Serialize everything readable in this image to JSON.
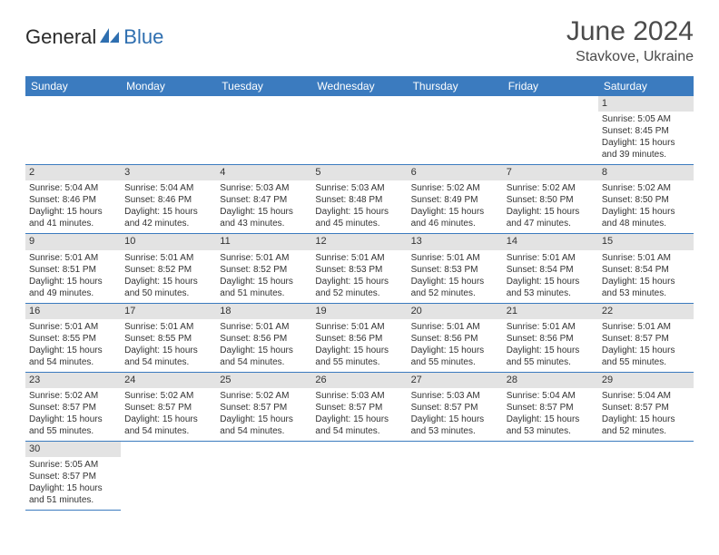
{
  "brand": {
    "part1": "General",
    "part2": "Blue"
  },
  "title": "June 2024",
  "location": "Stavkove, Ukraine",
  "colors": {
    "header_bg": "#3b7bbf",
    "header_fg": "#ffffff",
    "daynum_bg": "#e3e3e3",
    "border": "#3b7bbf",
    "text": "#333333",
    "title_color": "#4b4b4b",
    "logo_blue": "#2f6fb0"
  },
  "weekdays": [
    "Sunday",
    "Monday",
    "Tuesday",
    "Wednesday",
    "Thursday",
    "Friday",
    "Saturday"
  ],
  "days": {
    "1": {
      "sunrise": "5:05 AM",
      "sunset": "8:45 PM",
      "daylight": "15 hours and 39 minutes."
    },
    "2": {
      "sunrise": "5:04 AM",
      "sunset": "8:46 PM",
      "daylight": "15 hours and 41 minutes."
    },
    "3": {
      "sunrise": "5:04 AM",
      "sunset": "8:46 PM",
      "daylight": "15 hours and 42 minutes."
    },
    "4": {
      "sunrise": "5:03 AM",
      "sunset": "8:47 PM",
      "daylight": "15 hours and 43 minutes."
    },
    "5": {
      "sunrise": "5:03 AM",
      "sunset": "8:48 PM",
      "daylight": "15 hours and 45 minutes."
    },
    "6": {
      "sunrise": "5:02 AM",
      "sunset": "8:49 PM",
      "daylight": "15 hours and 46 minutes."
    },
    "7": {
      "sunrise": "5:02 AM",
      "sunset": "8:50 PM",
      "daylight": "15 hours and 47 minutes."
    },
    "8": {
      "sunrise": "5:02 AM",
      "sunset": "8:50 PM",
      "daylight": "15 hours and 48 minutes."
    },
    "9": {
      "sunrise": "5:01 AM",
      "sunset": "8:51 PM",
      "daylight": "15 hours and 49 minutes."
    },
    "10": {
      "sunrise": "5:01 AM",
      "sunset": "8:52 PM",
      "daylight": "15 hours and 50 minutes."
    },
    "11": {
      "sunrise": "5:01 AM",
      "sunset": "8:52 PM",
      "daylight": "15 hours and 51 minutes."
    },
    "12": {
      "sunrise": "5:01 AM",
      "sunset": "8:53 PM",
      "daylight": "15 hours and 52 minutes."
    },
    "13": {
      "sunrise": "5:01 AM",
      "sunset": "8:53 PM",
      "daylight": "15 hours and 52 minutes."
    },
    "14": {
      "sunrise": "5:01 AM",
      "sunset": "8:54 PM",
      "daylight": "15 hours and 53 minutes."
    },
    "15": {
      "sunrise": "5:01 AM",
      "sunset": "8:54 PM",
      "daylight": "15 hours and 53 minutes."
    },
    "16": {
      "sunrise": "5:01 AM",
      "sunset": "8:55 PM",
      "daylight": "15 hours and 54 minutes."
    },
    "17": {
      "sunrise": "5:01 AM",
      "sunset": "8:55 PM",
      "daylight": "15 hours and 54 minutes."
    },
    "18": {
      "sunrise": "5:01 AM",
      "sunset": "8:56 PM",
      "daylight": "15 hours and 54 minutes."
    },
    "19": {
      "sunrise": "5:01 AM",
      "sunset": "8:56 PM",
      "daylight": "15 hours and 55 minutes."
    },
    "20": {
      "sunrise": "5:01 AM",
      "sunset": "8:56 PM",
      "daylight": "15 hours and 55 minutes."
    },
    "21": {
      "sunrise": "5:01 AM",
      "sunset": "8:56 PM",
      "daylight": "15 hours and 55 minutes."
    },
    "22": {
      "sunrise": "5:01 AM",
      "sunset": "8:57 PM",
      "daylight": "15 hours and 55 minutes."
    },
    "23": {
      "sunrise": "5:02 AM",
      "sunset": "8:57 PM",
      "daylight": "15 hours and 55 minutes."
    },
    "24": {
      "sunrise": "5:02 AM",
      "sunset": "8:57 PM",
      "daylight": "15 hours and 54 minutes."
    },
    "25": {
      "sunrise": "5:02 AM",
      "sunset": "8:57 PM",
      "daylight": "15 hours and 54 minutes."
    },
    "26": {
      "sunrise": "5:03 AM",
      "sunset": "8:57 PM",
      "daylight": "15 hours and 54 minutes."
    },
    "27": {
      "sunrise": "5:03 AM",
      "sunset": "8:57 PM",
      "daylight": "15 hours and 53 minutes."
    },
    "28": {
      "sunrise": "5:04 AM",
      "sunset": "8:57 PM",
      "daylight": "15 hours and 53 minutes."
    },
    "29": {
      "sunrise": "5:04 AM",
      "sunset": "8:57 PM",
      "daylight": "15 hours and 52 minutes."
    },
    "30": {
      "sunrise": "5:05 AM",
      "sunset": "8:57 PM",
      "daylight": "15 hours and 51 minutes."
    }
  },
  "grid": [
    [
      null,
      null,
      null,
      null,
      null,
      null,
      "1"
    ],
    [
      "2",
      "3",
      "4",
      "5",
      "6",
      "7",
      "8"
    ],
    [
      "9",
      "10",
      "11",
      "12",
      "13",
      "14",
      "15"
    ],
    [
      "16",
      "17",
      "18",
      "19",
      "20",
      "21",
      "22"
    ],
    [
      "23",
      "24",
      "25",
      "26",
      "27",
      "28",
      "29"
    ],
    [
      "30",
      null,
      null,
      null,
      null,
      null,
      null
    ]
  ],
  "labels": {
    "sunrise": "Sunrise: ",
    "sunset": "Sunset: ",
    "daylight": "Daylight: "
  }
}
